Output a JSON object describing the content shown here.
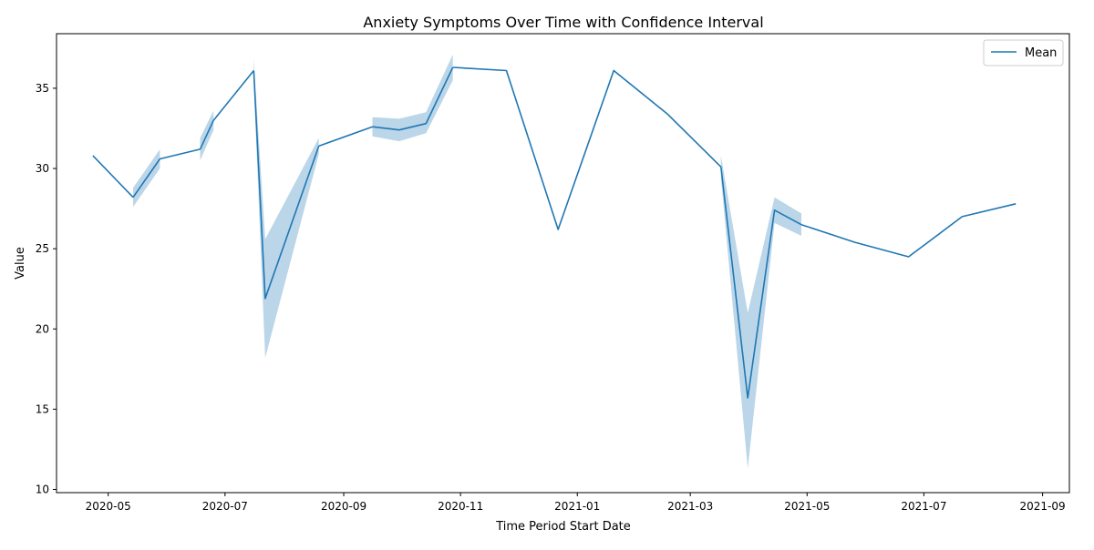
{
  "chart_data": {
    "type": "line",
    "title": "Anxiety Symptoms Over Time with Confidence Interval",
    "xlabel": "Time Period Start Date",
    "ylabel": "Value",
    "x_ticks": [
      "2020-05",
      "2020-07",
      "2020-09",
      "2020-11",
      "2021-01",
      "2021-03",
      "2021-05",
      "2021-07",
      "2021-09"
    ],
    "y_ticks": [
      10,
      15,
      20,
      25,
      30,
      35
    ],
    "xlim": [
      "2020-04-04",
      "2021-09-15"
    ],
    "ylim": [
      9.8,
      38.4
    ],
    "legend": {
      "position": "top-right",
      "entries": [
        "Mean"
      ]
    },
    "grid": false,
    "colors": {
      "line": "#1f77b4",
      "band": "#1f77b4"
    },
    "segments": [
      {
        "points": [
          {
            "date": "2020-04-23",
            "value": 30.8
          },
          {
            "date": "2020-05-14",
            "value": 28.2
          }
        ]
      },
      {
        "points": [
          {
            "date": "2020-05-14",
            "value": 28.2,
            "low": 27.6,
            "high": 28.8
          },
          {
            "date": "2020-05-28",
            "value": 30.6,
            "low": 30.0,
            "high": 31.2
          }
        ]
      },
      {
        "points": [
          {
            "date": "2020-05-28",
            "value": 30.6
          },
          {
            "date": "2020-06-18",
            "value": 31.2
          }
        ]
      },
      {
        "points": [
          {
            "date": "2020-06-18",
            "value": 31.2,
            "low": 30.5,
            "high": 31.9
          },
          {
            "date": "2020-06-25",
            "value": 33.0,
            "low": 32.4,
            "high": 33.6
          }
        ]
      },
      {
        "points": [
          {
            "date": "2020-06-25",
            "value": 33.0
          },
          {
            "date": "2020-07-16",
            "value": 36.1
          }
        ]
      },
      {
        "points": [
          {
            "date": "2020-07-16",
            "value": 36.1,
            "low": 35.4,
            "high": 36.8
          },
          {
            "date": "2020-07-22",
            "value": 21.9,
            "low": 18.2,
            "high": 25.6
          },
          {
            "date": "2020-08-19",
            "value": 31.4,
            "low": 30.9,
            "high": 31.9
          }
        ]
      },
      {
        "points": [
          {
            "date": "2020-08-19",
            "value": 31.4
          },
          {
            "date": "2020-09-16",
            "value": 32.6
          }
        ]
      },
      {
        "points": [
          {
            "date": "2020-09-16",
            "value": 32.6,
            "low": 32.0,
            "high": 33.2
          },
          {
            "date": "2020-09-30",
            "value": 32.4,
            "low": 31.7,
            "high": 33.1
          },
          {
            "date": "2020-10-14",
            "value": 32.8,
            "low": 32.2,
            "high": 33.5
          },
          {
            "date": "2020-10-28",
            "value": 36.3,
            "low": 35.5,
            "high": 37.1
          }
        ]
      },
      {
        "points": [
          {
            "date": "2020-10-28",
            "value": 36.3
          },
          {
            "date": "2020-11-25",
            "value": 36.1
          },
          {
            "date": "2020-12-22",
            "value": 26.2
          },
          {
            "date": "2021-01-20",
            "value": 36.1
          },
          {
            "date": "2021-02-17",
            "value": 33.4
          },
          {
            "date": "2021-03-17",
            "value": 30.1
          }
        ]
      },
      {
        "points": [
          {
            "date": "2021-03-17",
            "value": 30.1,
            "low": 29.4,
            "high": 30.8
          },
          {
            "date": "2021-03-31",
            "value": 15.7,
            "low": 11.3,
            "high": 21.0
          },
          {
            "date": "2021-04-14",
            "value": 27.4,
            "low": 26.6,
            "high": 28.2
          },
          {
            "date": "2021-04-28",
            "value": 26.5,
            "low": 25.8,
            "high": 27.2
          }
        ]
      },
      {
        "points": [
          {
            "date": "2021-04-28",
            "value": 26.5
          },
          {
            "date": "2021-05-26",
            "value": 25.4
          },
          {
            "date": "2021-06-23",
            "value": 24.5
          },
          {
            "date": "2021-07-21",
            "value": 27.0
          },
          {
            "date": "2021-08-18",
            "value": 27.8
          }
        ]
      }
    ]
  }
}
